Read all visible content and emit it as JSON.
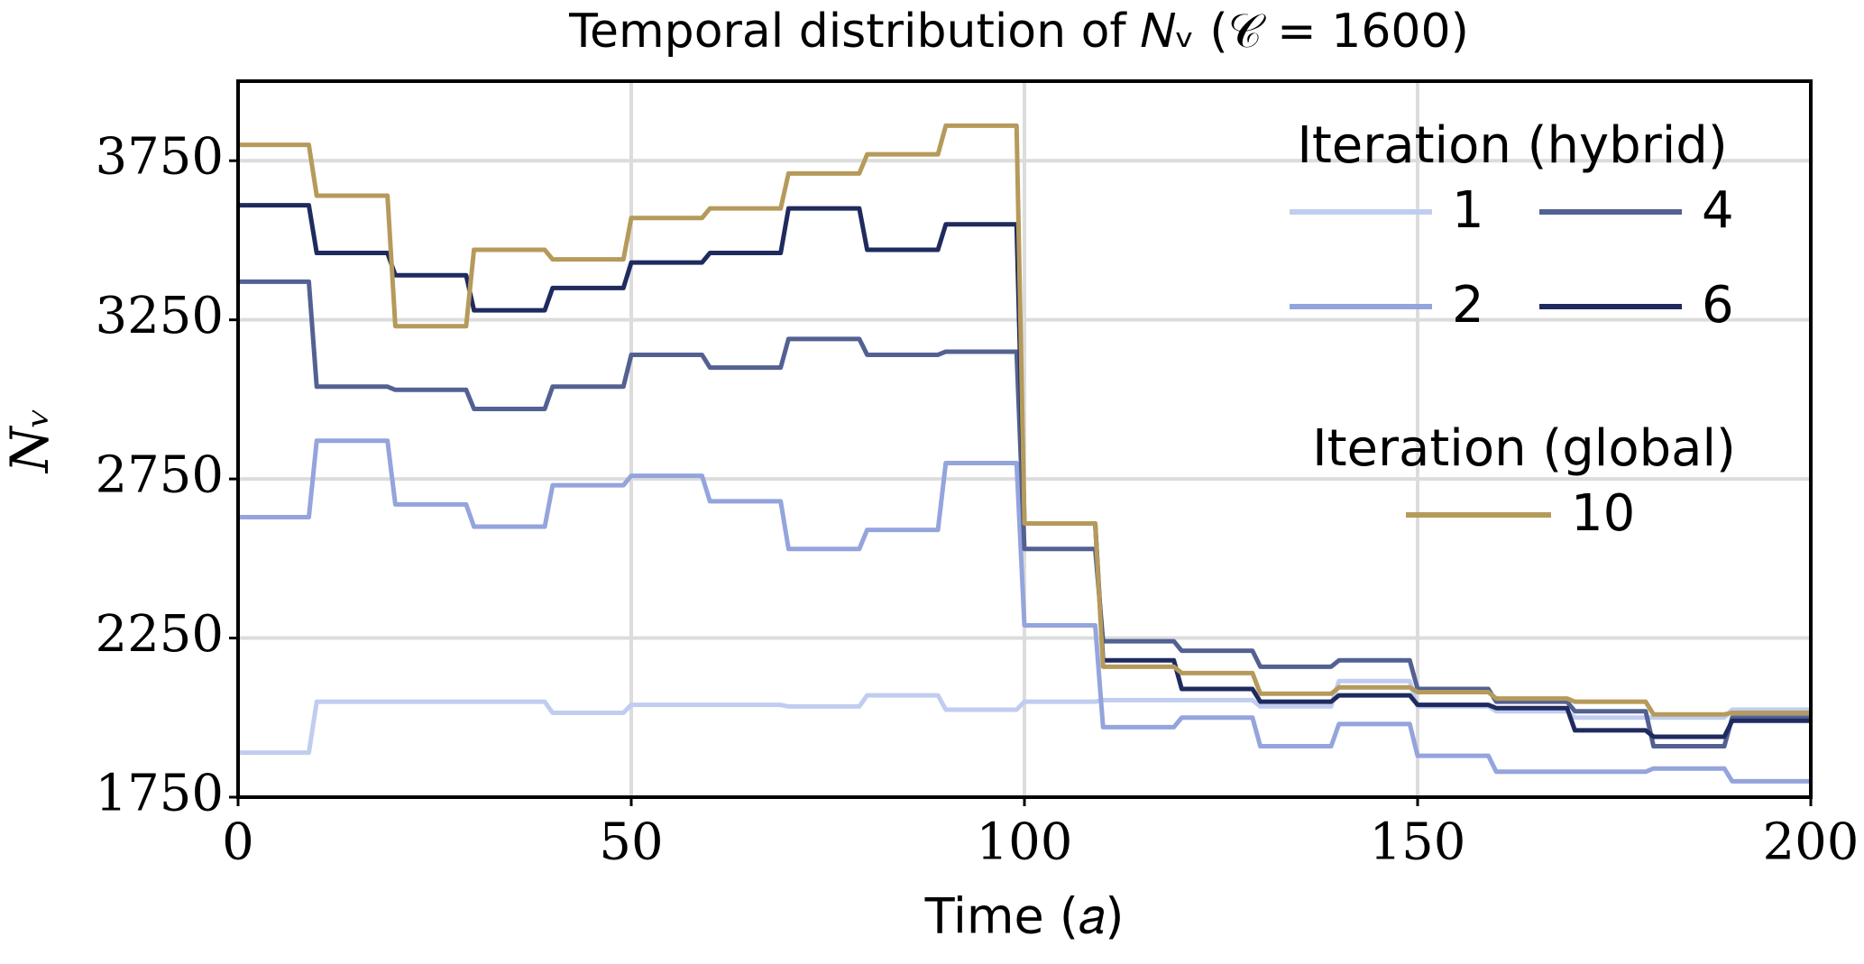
{
  "chart_data": {
    "type": "line",
    "title": "Temporal distribution of 𝑁ᵥ (𝒞 = 1600)",
    "x_label": "Time (𝑎)",
    "y_label": "𝑁ᵥ",
    "x": [
      0,
      9,
      10,
      19,
      20,
      29,
      30,
      39,
      40,
      49,
      50,
      59,
      60,
      69,
      70,
      79,
      80,
      89,
      90,
      99,
      100,
      109,
      110,
      119,
      120,
      129,
      130,
      139,
      140,
      149,
      150,
      159,
      160,
      169,
      170,
      179,
      180,
      189,
      190,
      200
    ],
    "series": [
      {
        "name": "1",
        "color": "#c0cdf0",
        "values": [
          1890,
          1890,
          2050,
          2050,
          2050,
          2050,
          2050,
          2050,
          2015,
          2015,
          2040,
          2040,
          2040,
          2040,
          2035,
          2035,
          2070,
          2070,
          2025,
          2025,
          2050,
          2050,
          2055,
          2055,
          2055,
          2055,
          2035,
          2035,
          2115,
          2115,
          2035,
          2035,
          2020,
          2020,
          2000,
          2000,
          2000,
          2000,
          2025,
          2025
        ]
      },
      {
        "name": "2",
        "color": "#94a4dc",
        "values": [
          2630,
          2630,
          2870,
          2870,
          2670,
          2670,
          2600,
          2600,
          2730,
          2730,
          2760,
          2760,
          2680,
          2680,
          2530,
          2530,
          2590,
          2590,
          2800,
          2800,
          2290,
          2290,
          1970,
          1970,
          2000,
          2000,
          1910,
          1910,
          1980,
          1980,
          1880,
          1880,
          1830,
          1830,
          1830,
          1830,
          1840,
          1840,
          1800,
          1800
        ]
      },
      {
        "name": "4",
        "color": "#536192",
        "values": [
          3370,
          3370,
          3040,
          3040,
          3030,
          3030,
          2970,
          2970,
          3040,
          3040,
          3140,
          3140,
          3100,
          3100,
          3190,
          3190,
          3140,
          3140,
          3150,
          3150,
          2530,
          2530,
          2240,
          2240,
          2210,
          2210,
          2160,
          2160,
          2180,
          2180,
          2090,
          2090,
          2050,
          2050,
          2020,
          2020,
          1910,
          1910,
          2000,
          2000
        ]
      },
      {
        "name": "6",
        "color": "#1f2b5e",
        "values": [
          3610,
          3610,
          3460,
          3460,
          3390,
          3390,
          3280,
          3280,
          3350,
          3350,
          3430,
          3430,
          3460,
          3460,
          3600,
          3600,
          3470,
          3470,
          3550,
          3550,
          2610,
          2610,
          2180,
          2180,
          2090,
          2090,
          2050,
          2050,
          2070,
          2070,
          2040,
          2040,
          2030,
          2030,
          1960,
          1960,
          1940,
          1940,
          1990,
          1990
        ]
      },
      {
        "name": "10",
        "color": "#b59a5b",
        "values": [
          3800,
          3800,
          3640,
          3640,
          3230,
          3230,
          3470,
          3470,
          3440,
          3440,
          3570,
          3570,
          3600,
          3600,
          3710,
          3710,
          3770,
          3770,
          3860,
          3860,
          2610,
          2610,
          2160,
          2160,
          2140,
          2140,
          2075,
          2075,
          2095,
          2095,
          2080,
          2080,
          2060,
          2060,
          2050,
          2050,
          2010,
          2010,
          2015,
          2015
        ]
      }
    ],
    "legend_titles": [
      "Iteration (hybrid)",
      "Iteration (global)"
    ],
    "xlim": [
      0,
      200
    ],
    "ylim": [
      1750,
      4000
    ],
    "xticks": [
      0,
      50,
      100,
      150,
      200
    ],
    "yticks": [
      1750,
      2250,
      2750,
      3250,
      3750
    ],
    "grid": true
  }
}
